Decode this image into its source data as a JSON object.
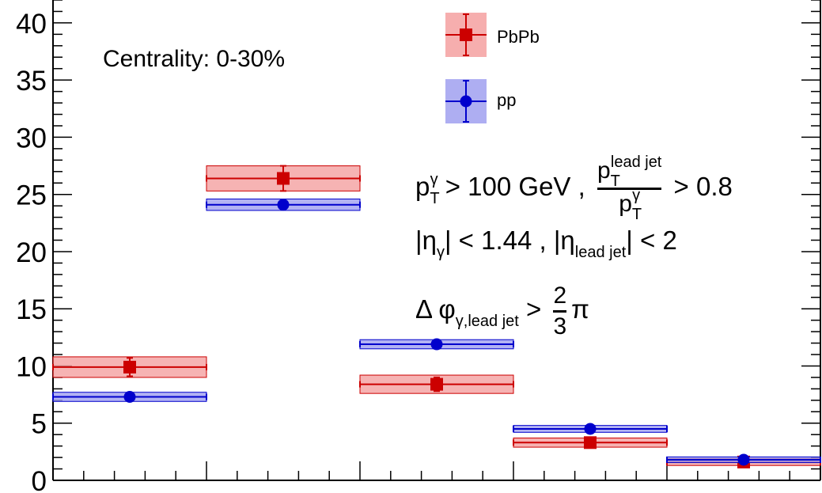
{
  "chart_data": {
    "type": "scatter",
    "ylim": [
      0,
      42
    ],
    "x_bins": [
      [
        0,
        1
      ],
      [
        1,
        2
      ],
      [
        2,
        3
      ],
      [
        3,
        4
      ],
      [
        4,
        5
      ]
    ],
    "y_ticks": [
      "0",
      "5",
      "10",
      "15",
      "20",
      "25",
      "30",
      "35",
      "40"
    ],
    "series": [
      {
        "name": "PbPb",
        "color": "#cc0000",
        "band_color": "#f4a0a0",
        "marker": "square",
        "values": [
          9.9,
          26.4,
          8.4,
          3.3,
          1.6
        ],
        "stat_err": [
          0.8,
          1.1,
          0.6,
          0.2,
          0.1
        ],
        "sys_err": [
          0.9,
          1.1,
          0.8,
          0.4,
          0.3
        ]
      },
      {
        "name": "pp",
        "color": "#0000cc",
        "band_color": "#a0a0f0",
        "marker": "circle",
        "values": [
          7.3,
          24.1,
          11.9,
          4.5,
          1.8
        ],
        "stat_err": [
          0.2,
          0.3,
          0.25,
          0.15,
          0.1
        ],
        "sys_err": [
          0.4,
          0.5,
          0.4,
          0.3,
          0.25
        ]
      }
    ],
    "legend_position": "top-center",
    "annotations": {
      "centrality": "Centrality: 0-30%",
      "pt_cut_prefix": "p",
      "pt_cut_sup": "γ",
      "pt_cut_sub": "T",
      "pt_cut_value": " > 100 GeV ,",
      "ratio_num": "p",
      "ratio_num_sup": "lead jet",
      "ratio_num_sub": "T",
      "ratio_den": "p",
      "ratio_den_sup": "γ",
      "ratio_den_sub": "T",
      "ratio_value": "> 0.8",
      "eta_prefix": "|η",
      "eta_sub": "γ",
      "eta_value": "| < 1.44 , |η",
      "eta_jet_sub": "lead jet",
      "eta_jet_value": "| < 2",
      "dphi_prefix": "Δ φ",
      "dphi_sub": "γ,lead jet",
      "dphi_gt": " > ",
      "dphi_num": "2",
      "dphi_den": "3",
      "dphi_pi": "π"
    }
  }
}
